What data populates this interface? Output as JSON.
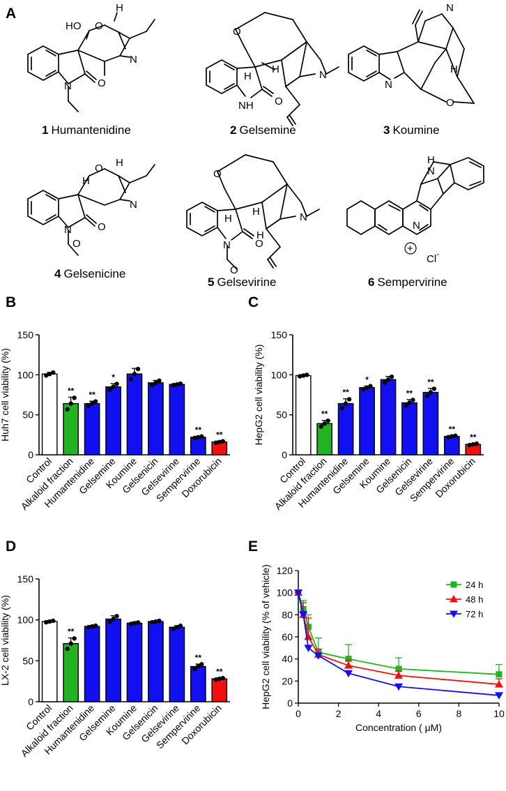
{
  "panels": {
    "a": "A",
    "b": "B",
    "c": "C",
    "d": "D",
    "e": "E"
  },
  "compounds": [
    {
      "num": "1",
      "name": "Humantenidine"
    },
    {
      "num": "2",
      "name": "Gelsemine"
    },
    {
      "num": "3",
      "name": "Koumine"
    },
    {
      "num": "4",
      "name": "Gelsenicine"
    },
    {
      "num": "5",
      "name": "Gelsevirine"
    },
    {
      "num": "6",
      "name": "Sempervirine"
    }
  ],
  "atoms": {
    "ho": "HO",
    "o": "O",
    "n": "N",
    "h": "H",
    "nh": "NH",
    "hn": "H\nN",
    "n_h": "N",
    "cl": "Cl",
    "minus": "-",
    "plus": "+"
  },
  "colors": {
    "control": "#ffffff",
    "alkaloid": "#22b322",
    "pure": "#1010f0",
    "doxorubicin": "#f01010",
    "s24": "#22b322",
    "s48": "#f01010",
    "s72": "#1010f0"
  },
  "chart_data": [
    {
      "type": "bar",
      "panel": "B",
      "categories": [
        "Control",
        "Alkaloid fraction",
        "Humantenidine",
        "Gelsemine",
        "Koumine",
        "Gelsenicin",
        "Gelsevirine",
        "Sempervirine",
        "Doxorubicin"
      ],
      "values": [
        101,
        64,
        64,
        85,
        101,
        90,
        88,
        22,
        16
      ],
      "errors": [
        2,
        8,
        3,
        4,
        7,
        3,
        1,
        1,
        1
      ],
      "significance": [
        "",
        "**",
        "**",
        "*",
        "",
        "",
        "",
        "**",
        "**"
      ],
      "ylabel": "Huh7 cell viability (%)",
      "ylim": [
        0,
        150
      ],
      "yticks": [
        0,
        50,
        100,
        150
      ]
    },
    {
      "type": "bar",
      "panel": "C",
      "categories": [
        "Control",
        "Alkaloid fraction",
        "Humantenidine",
        "Gelsemine",
        "Koumine",
        "Gelsenicin",
        "Gelsevirine",
        "Sempervirine",
        "Doxorubicin"
      ],
      "values": [
        99,
        39,
        64,
        84,
        94,
        65,
        78,
        23,
        13
      ],
      "errors": [
        1,
        4,
        6,
        2,
        4,
        4,
        5,
        1,
        1
      ],
      "significance": [
        "",
        "**",
        "**",
        "*",
        "",
        "**",
        "**",
        "**",
        "**"
      ],
      "ylabel": "HepG2 cell viability (%)",
      "ylim": [
        0,
        150
      ],
      "yticks": [
        0,
        50,
        100,
        150
      ]
    },
    {
      "type": "bar",
      "panel": "D",
      "categories": [
        "Control",
        "Alkaloid fraction",
        "Humantenidine",
        "Gelsemine",
        "Koumine",
        "Gelsenicin",
        "Gelsevirine",
        "Sempervirine",
        "Doxorubicin"
      ],
      "values": [
        98,
        71,
        92,
        101,
        96,
        98,
        91,
        43,
        28
      ],
      "errors": [
        1,
        7,
        1,
        4,
        1,
        1,
        2,
        3,
        1
      ],
      "significance": [
        "",
        "**",
        "",
        "",
        "",
        "",
        "",
        "**",
        "**"
      ],
      "ylabel": "LX-2 cell viability (%)",
      "ylim": [
        0,
        150
      ],
      "yticks": [
        0,
        50,
        100,
        150
      ]
    },
    {
      "type": "line",
      "panel": "E",
      "x": [
        0,
        0.25,
        0.5,
        1,
        2.5,
        5,
        10
      ],
      "series": [
        {
          "name": "24 h",
          "values": [
            100,
            85,
            69,
            46,
            40,
            31,
            26
          ],
          "errors": [
            0,
            8,
            11,
            13,
            13,
            10,
            9
          ]
        },
        {
          "name": "48 h",
          "values": [
            100,
            80,
            60,
            44,
            34,
            25,
            17
          ],
          "errors": [
            0,
            11,
            17,
            5,
            5,
            4,
            5
          ]
        },
        {
          "name": "72 h",
          "values": [
            100,
            80,
            50,
            43,
            27,
            15,
            7
          ],
          "errors": [
            0,
            3,
            2,
            2,
            2,
            2,
            2
          ]
        }
      ],
      "xlabel": "Concentration ( μM)",
      "ylabel": "HepG2 cell viability (% of vehicle)",
      "xlim": [
        0,
        10
      ],
      "ylim": [
        0,
        120
      ],
      "xticks": [
        0,
        2,
        4,
        6,
        8,
        10
      ],
      "yticks": [
        0,
        20,
        40,
        60,
        80,
        100,
        120
      ],
      "legend": "top-right"
    }
  ]
}
